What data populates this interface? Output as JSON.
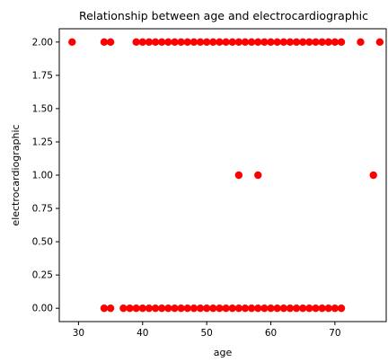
{
  "chart_data": {
    "type": "scatter",
    "title": "Relationship between age and electrocardiographic",
    "xlabel": "age",
    "ylabel": "electrocardiographic",
    "xlim": [
      27,
      78
    ],
    "ylim": [
      -0.1,
      2.1
    ],
    "xticks": [
      "30",
      "40",
      "50",
      "60",
      "70"
    ],
    "yticks": [
      "0.00",
      "0.25",
      "0.50",
      "0.75",
      "1.00",
      "1.25",
      "1.50",
      "1.75",
      "2.00"
    ],
    "grid": false,
    "marker_color": "#ff0000",
    "series": [
      {
        "points": [
          [
            29,
            2
          ],
          [
            34,
            2
          ],
          [
            35,
            2
          ],
          [
            39,
            2
          ],
          [
            40,
            2
          ],
          [
            41,
            2
          ],
          [
            42,
            2
          ],
          [
            43,
            2
          ],
          [
            44,
            2
          ],
          [
            45,
            2
          ],
          [
            46,
            2
          ],
          [
            47,
            2
          ],
          [
            48,
            2
          ],
          [
            49,
            2
          ],
          [
            50,
            2
          ],
          [
            51,
            2
          ],
          [
            52,
            2
          ],
          [
            53,
            2
          ],
          [
            54,
            2
          ],
          [
            55,
            2
          ],
          [
            56,
            2
          ],
          [
            57,
            2
          ],
          [
            58,
            2
          ],
          [
            59,
            2
          ],
          [
            60,
            2
          ],
          [
            61,
            2
          ],
          [
            62,
            2
          ],
          [
            63,
            2
          ],
          [
            64,
            2
          ],
          [
            65,
            2
          ],
          [
            66,
            2
          ],
          [
            67,
            2
          ],
          [
            68,
            2
          ],
          [
            69,
            2
          ],
          [
            70,
            2
          ],
          [
            71,
            2
          ],
          [
            74,
            2
          ],
          [
            77,
            2
          ],
          [
            55,
            1
          ],
          [
            58,
            1
          ],
          [
            76,
            1
          ],
          [
            34,
            0
          ],
          [
            35,
            0
          ],
          [
            37,
            0
          ],
          [
            38,
            0
          ],
          [
            39,
            0
          ],
          [
            40,
            0
          ],
          [
            41,
            0
          ],
          [
            42,
            0
          ],
          [
            43,
            0
          ],
          [
            44,
            0
          ],
          [
            45,
            0
          ],
          [
            46,
            0
          ],
          [
            47,
            0
          ],
          [
            48,
            0
          ],
          [
            49,
            0
          ],
          [
            50,
            0
          ],
          [
            51,
            0
          ],
          [
            52,
            0
          ],
          [
            53,
            0
          ],
          [
            54,
            0
          ],
          [
            55,
            0
          ],
          [
            56,
            0
          ],
          [
            57,
            0
          ],
          [
            58,
            0
          ],
          [
            59,
            0
          ],
          [
            60,
            0
          ],
          [
            61,
            0
          ],
          [
            62,
            0
          ],
          [
            63,
            0
          ],
          [
            64,
            0
          ],
          [
            65,
            0
          ],
          [
            66,
            0
          ],
          [
            67,
            0
          ],
          [
            68,
            0
          ],
          [
            69,
            0
          ],
          [
            70,
            0
          ],
          [
            71,
            0
          ]
        ]
      }
    ]
  }
}
